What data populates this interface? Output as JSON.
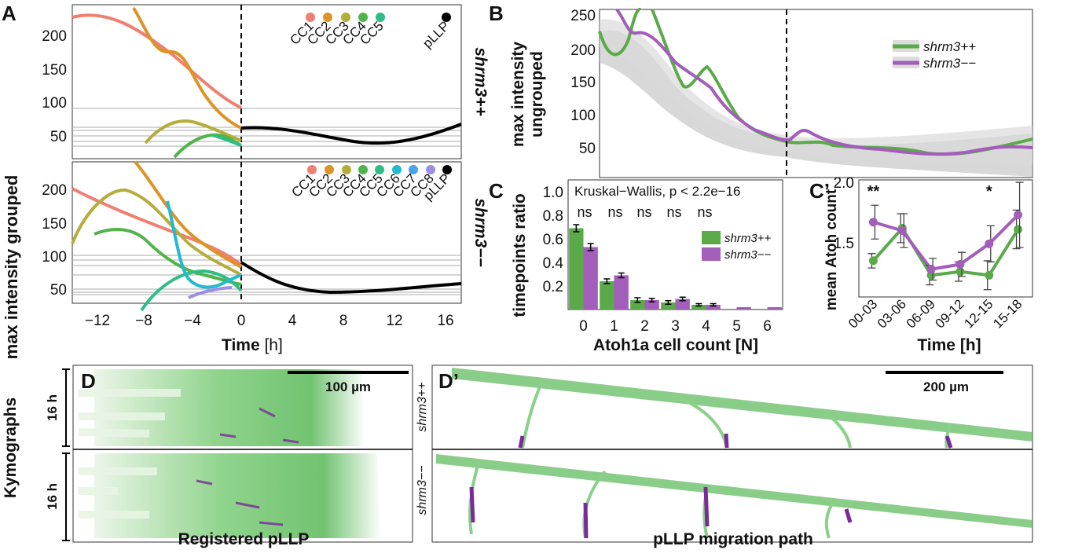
{
  "panels": {
    "A": "A",
    "B": "B",
    "C": "C",
    "Cp": "C’",
    "D": "D",
    "Dp": "D’"
  },
  "colors": {
    "cc1": "#f07f72",
    "cc2": "#dc9426",
    "cc3": "#b3ad3a",
    "cc4": "#50b44a",
    "cc5": "#2ebd86",
    "cc6": "#24b9d0",
    "cc7": "#4aa3e6",
    "cc8": "#9c8ee4",
    "pllp": "#000000",
    "plus": "#5aaa4a",
    "minus": "#a35dba"
  },
  "panelA": {
    "ylabel": "max intensity grouped",
    "xlabel_bold": "Time",
    "xlabel_unit": " [h]",
    "row_plus": "shrm3++",
    "row_minus": "shrm3−−",
    "yticks": [
      "200",
      "150",
      "100",
      "50"
    ],
    "xticks": [
      "−12",
      "−8",
      "−4",
      "0",
      "4",
      "8",
      "12",
      "16"
    ],
    "legend_plus": [
      "CC1",
      "CC2",
      "CC3",
      "CC4",
      "CC5",
      "pLLP"
    ],
    "legend_minus": [
      "CC1",
      "CC2",
      "CC3",
      "CC4",
      "CC5",
      "CC6",
      "CC7",
      "CC8",
      "pLLP"
    ]
  },
  "panelB": {
    "ylabel1": "max intensity",
    "ylabel2": "ungrouped",
    "yticks": [
      "250",
      "200",
      "150",
      "100",
      "50"
    ],
    "legend": [
      "shrm3++",
      "shrm3−−"
    ]
  },
  "chart_data": [
    {
      "type": "bar",
      "title": "Kruskal−Wallis, p < 2.2e−16",
      "xlabel": "Atoh1a cell count [N]",
      "ylabel": "timepoints ratio",
      "categories": [
        "0",
        "1",
        "2",
        "3",
        "4",
        "5",
        "6"
      ],
      "yticks": [
        "1.0",
        "0.8",
        "0.6",
        "0.4",
        "0.2"
      ],
      "ylim": [
        0,
        1.1
      ],
      "annotations": [
        "ns",
        "ns",
        "ns",
        "ns",
        "ns"
      ],
      "series": [
        {
          "name": "shrm3++",
          "values": [
            0.69,
            0.24,
            0.08,
            0.06,
            0.04,
            0.0,
            0.0
          ],
          "err": [
            0.03,
            0.02,
            0.02,
            0.015,
            0.01,
            0,
            0
          ]
        },
        {
          "name": "shrm3−−",
          "values": [
            0.53,
            0.29,
            0.08,
            0.09,
            0.04,
            0.02,
            0.02
          ],
          "err": [
            0.03,
            0.02,
            0.015,
            0.015,
            0.01,
            0,
            0
          ]
        }
      ]
    },
    {
      "type": "line",
      "xlabel": "Time [h]",
      "ylabel": "mean Atoh count",
      "categories": [
        "00-03",
        "03-06",
        "06-09",
        "09-12",
        "12-15",
        "15-18"
      ],
      "yticks": [
        "2.0",
        "1.5"
      ],
      "ylim": [
        1.05,
        2.02
      ],
      "annotations": [
        {
          "category": "00-03",
          "text": "**"
        },
        {
          "category": "12-15",
          "text": "*"
        }
      ],
      "series": [
        {
          "name": "shrm3++",
          "values": [
            1.35,
            1.62,
            1.23,
            1.26,
            1.23,
            1.61
          ],
          "err": [
            0.06,
            0.12,
            0.08,
            0.08,
            0.12,
            0.16
          ]
        },
        {
          "name": "shrm3−−",
          "values": [
            1.67,
            1.6,
            1.28,
            1.32,
            1.49,
            1.73
          ],
          "err": [
            0.14,
            0.14,
            0.09,
            0.1,
            0.15,
            0.27
          ]
        }
      ]
    }
  ],
  "kymo": {
    "side_label": "Kymographs",
    "duration": "16 h",
    "scalebar_D": "100 µm",
    "scalebar_Dp": "200 µm",
    "row_plus": "shrm3++",
    "row_minus": "shrm3−−",
    "caption_D": "Registered pLLP",
    "caption_Dp": "pLLP migration path"
  }
}
